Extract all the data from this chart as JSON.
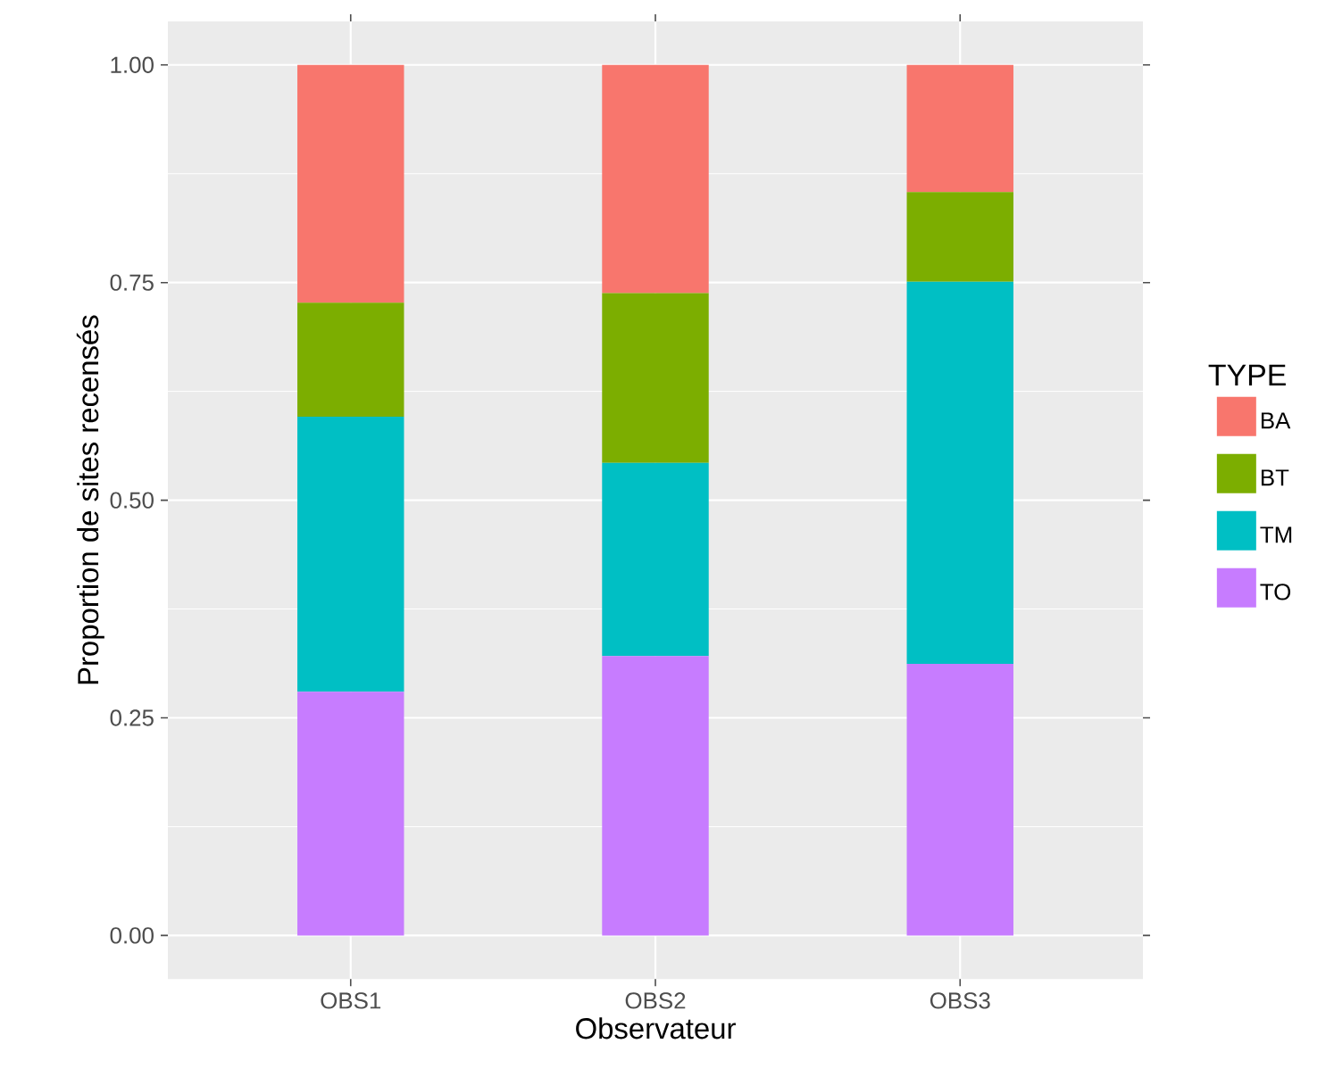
{
  "chart_data": {
    "type": "bar",
    "stacked": true,
    "xlabel": "Observateur",
    "ylabel": "Proportion de sites recensés",
    "legend_title": "TYPE",
    "legend": "right",
    "grid": true,
    "categories": [
      "OBS1",
      "OBS2",
      "OBS3"
    ],
    "series": [
      {
        "name": "TO",
        "color": "#c77cff",
        "values": [
          0.28,
          0.321,
          0.312
        ]
      },
      {
        "name": "TM",
        "color": "#00bfc4",
        "values": [
          0.316,
          0.222,
          0.439
        ]
      },
      {
        "name": "BT",
        "color": "#7cae00",
        "values": [
          0.131,
          0.195,
          0.103
        ]
      },
      {
        "name": "BA",
        "color": "#f8766d",
        "values": [
          0.273,
          0.262,
          0.146
        ]
      }
    ],
    "ylim": [
      -0.05,
      1.05
    ],
    "yticks": [
      {
        "value": 0,
        "label": "0.00"
      },
      {
        "value": 0.25,
        "label": "0.25"
      },
      {
        "value": 0.5,
        "label": "0.50"
      },
      {
        "value": 0.75,
        "label": "0.75"
      },
      {
        "value": 1,
        "label": "1.00"
      }
    ]
  }
}
